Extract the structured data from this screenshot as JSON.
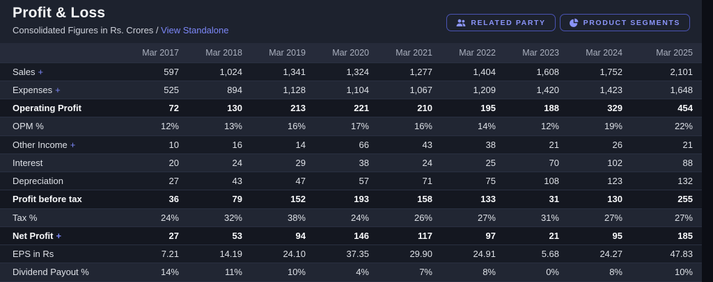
{
  "header": {
    "title": "Profit & Loss",
    "subtitle": "Consolidated Figures in Rs. Crores /",
    "link": "View Standalone",
    "buttons": [
      {
        "label": "RELATED PARTY",
        "icon": "users-icon"
      },
      {
        "label": "PRODUCT SEGMENTS",
        "icon": "pie-chart-icon"
      }
    ]
  },
  "colors": {
    "accent": "#7c87f8"
  },
  "table": {
    "plus": "+",
    "columns": [
      "Mar 2017",
      "Mar 2018",
      "Mar 2019",
      "Mar 2020",
      "Mar 2021",
      "Mar 2022",
      "Mar 2023",
      "Mar 2024",
      "Mar 2025"
    ],
    "rows": [
      {
        "label": "Sales",
        "expandable": true,
        "variant": "dark",
        "values": [
          "597",
          "1,024",
          "1,341",
          "1,324",
          "1,277",
          "1,404",
          "1,608",
          "1,752",
          "2,101"
        ]
      },
      {
        "label": "Expenses",
        "expandable": true,
        "variant": "light",
        "values": [
          "525",
          "894",
          "1,128",
          "1,104",
          "1,067",
          "1,209",
          "1,420",
          "1,423",
          "1,648"
        ]
      },
      {
        "label": "Operating Profit",
        "expandable": false,
        "variant": "strong",
        "values": [
          "72",
          "130",
          "213",
          "221",
          "210",
          "195",
          "188",
          "329",
          "454"
        ]
      },
      {
        "label": "OPM %",
        "expandable": false,
        "variant": "light",
        "values": [
          "12%",
          "13%",
          "16%",
          "17%",
          "16%",
          "14%",
          "12%",
          "19%",
          "22%"
        ]
      },
      {
        "label": "Other Income",
        "expandable": true,
        "variant": "dark",
        "values": [
          "10",
          "16",
          "14",
          "66",
          "43",
          "38",
          "21",
          "26",
          "21"
        ]
      },
      {
        "label": "Interest",
        "expandable": false,
        "variant": "light",
        "values": [
          "20",
          "24",
          "29",
          "38",
          "24",
          "25",
          "70",
          "102",
          "88"
        ]
      },
      {
        "label": "Depreciation",
        "expandable": false,
        "variant": "dark",
        "values": [
          "27",
          "43",
          "47",
          "57",
          "71",
          "75",
          "108",
          "123",
          "132"
        ]
      },
      {
        "label": "Profit before tax",
        "expandable": false,
        "variant": "strong",
        "values": [
          "36",
          "79",
          "152",
          "193",
          "158",
          "133",
          "31",
          "130",
          "255"
        ]
      },
      {
        "label": "Tax %",
        "expandable": false,
        "variant": "light",
        "values": [
          "24%",
          "32%",
          "38%",
          "24%",
          "26%",
          "27%",
          "31%",
          "27%",
          "27%"
        ]
      },
      {
        "label": "Net Profit",
        "expandable": true,
        "variant": "strong",
        "values": [
          "27",
          "53",
          "94",
          "146",
          "117",
          "97",
          "21",
          "95",
          "185"
        ]
      },
      {
        "label": "EPS in Rs",
        "expandable": false,
        "variant": "dark",
        "values": [
          "7.21",
          "14.19",
          "24.10",
          "37.35",
          "29.90",
          "24.91",
          "5.68",
          "24.27",
          "47.83"
        ]
      },
      {
        "label": "Dividend Payout %",
        "expandable": false,
        "variant": "light",
        "values": [
          "14%",
          "11%",
          "10%",
          "4%",
          "7%",
          "8%",
          "0%",
          "8%",
          "10%"
        ]
      }
    ]
  }
}
